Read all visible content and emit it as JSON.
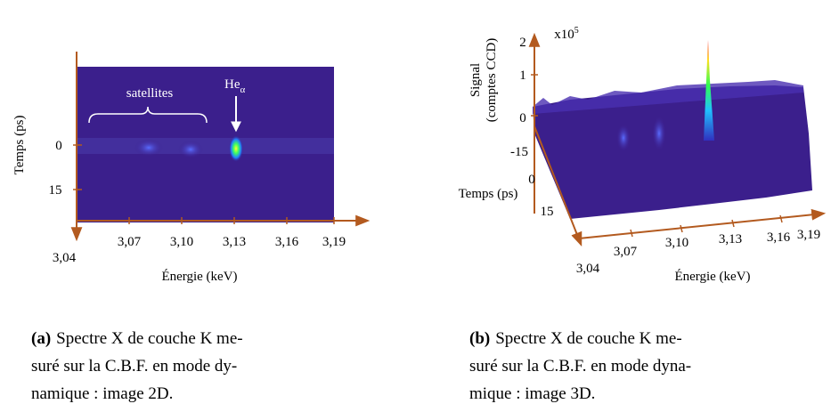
{
  "panel_a": {
    "y_axis_label": "Temps (ps)",
    "y_ticks": [
      "0",
      "15"
    ],
    "x_ticks": [
      "3,04",
      "3,07",
      "3,10",
      "3,13",
      "3,16",
      "3,19"
    ],
    "x_axis_label": "Énergie (keV)",
    "annotation_satellites": "satellites",
    "annotation_peak": {
      "main": "He",
      "subscript": "α"
    },
    "caption": {
      "label": "(a)",
      "lines": [
        "Spectre X de couche K me-",
        "suré sur la C.B.F. en mode dy-",
        "namique : image 2D."
      ]
    }
  },
  "panel_b": {
    "scale": {
      "main": "x10",
      "superscript": "5"
    },
    "z_axis_label": [
      "Signal",
      "(comptes CCD)"
    ],
    "z_ticks": [
      "2",
      "1",
      "0"
    ],
    "y_axis_label": "Temps (ps)",
    "y_ticks": [
      "-15",
      "0",
      "15"
    ],
    "x_ticks": [
      "3,04",
      "3,07",
      "3,10",
      "3,13",
      "3,16",
      "3,19"
    ],
    "x_axis_label": "Énergie (keV)",
    "caption": {
      "label": "(b)",
      "lines": [
        "Spectre X de couche K me-",
        "suré sur la C.B.F. en mode dyna-",
        "mique : image 3D."
      ]
    }
  }
}
